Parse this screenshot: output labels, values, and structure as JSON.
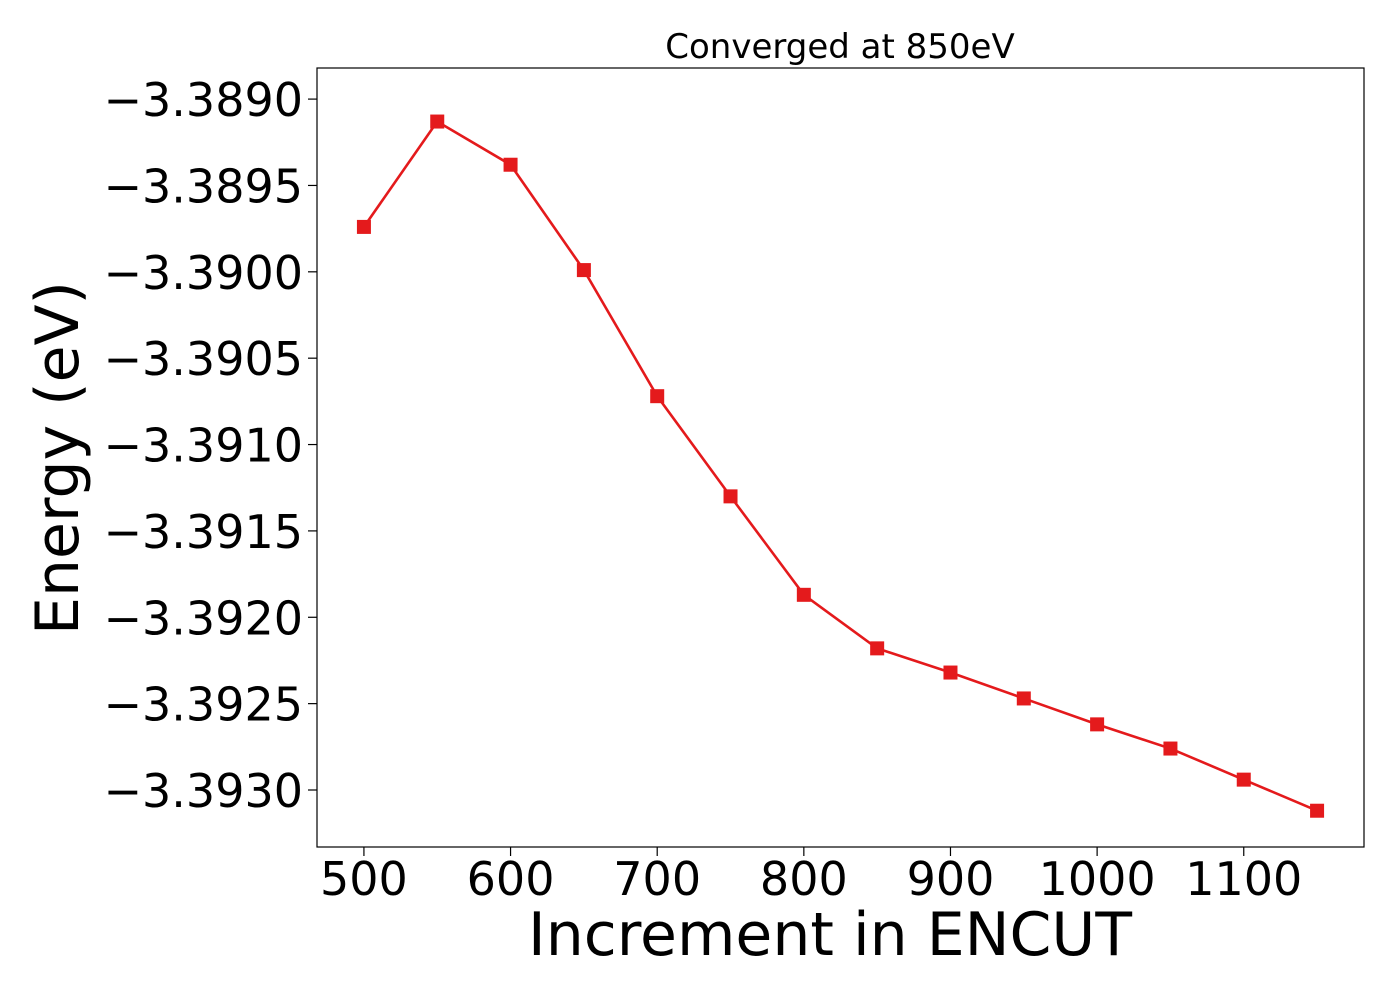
{
  "chart_data": {
    "type": "line",
    "title": "Converged at 850eV",
    "xlabel": "Increment in ENCUT",
    "ylabel": "Energy (eV)",
    "x": [
      500,
      550,
      600,
      650,
      700,
      750,
      800,
      850,
      900,
      950,
      1000,
      1050,
      1100,
      1150
    ],
    "series": [
      {
        "values": [
          -3.38974,
          -3.38913,
          -3.38938,
          -3.38999,
          -3.39072,
          -3.3913,
          -3.39187,
          -3.39218,
          -3.39232,
          -3.39247,
          -3.39262,
          -3.39276,
          -3.39294,
          -3.39312
        ],
        "color": "#e41a1c",
        "marker": "square"
      }
    ],
    "xlim": [
      468,
      1182
    ],
    "ylim": [
      -3.39333,
      -3.38882
    ],
    "xticks": [
      500,
      600,
      700,
      800,
      900,
      1000,
      1100
    ],
    "xtick_labels": [
      "500",
      "600",
      "700",
      "800",
      "900",
      "1000",
      "1100"
    ],
    "yticks": [
      -3.389,
      -3.3895,
      -3.39,
      -3.3905,
      -3.391,
      -3.3915,
      -3.392,
      -3.3925,
      -3.393
    ],
    "ytick_labels": [
      "−3.3890",
      "−3.3895",
      "−3.3900",
      "−3.3905",
      "−3.3910",
      "−3.3915",
      "−3.3920",
      "−3.3925",
      "−3.3930"
    ],
    "grid": false,
    "legend": "none"
  }
}
